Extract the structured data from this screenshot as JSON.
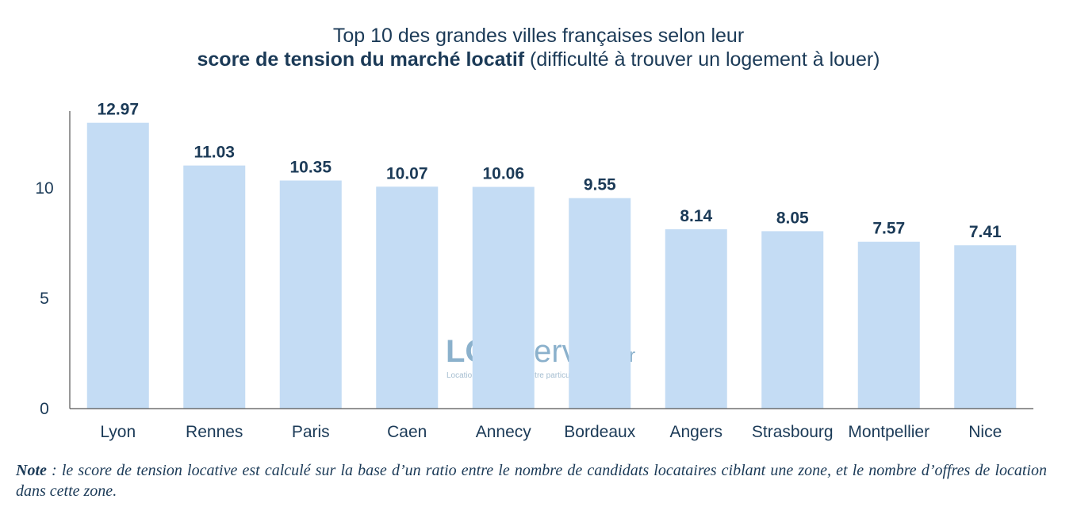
{
  "title": {
    "line1": "Top 10 des grandes villes françaises selon leur",
    "line2_bold": "score de tension du marché locatif",
    "line2_rest": " (difficulté à trouver un logement à louer)"
  },
  "chart_data": {
    "type": "bar",
    "categories": [
      "Lyon",
      "Rennes",
      "Paris",
      "Caen",
      "Annecy",
      "Bordeaux",
      "Angers",
      "Strasbourg",
      "Montpellier",
      "Nice"
    ],
    "values": [
      12.97,
      11.03,
      10.35,
      10.07,
      10.06,
      9.55,
      8.14,
      8.05,
      7.57,
      7.41
    ],
    "value_labels": [
      "12.97",
      "11.03",
      "10.35",
      "10.07",
      "10.06",
      "9.55",
      "8.14",
      "8.05",
      "7.57",
      "7.41"
    ],
    "yticks": [
      "0",
      "5",
      "10"
    ],
    "ytick_values": [
      0,
      5,
      10
    ],
    "ylim": [
      0,
      13.5
    ],
    "xlabel": "",
    "ylabel": "",
    "bar_color": "#c4dcf4",
    "text_color": "#1b3a57"
  },
  "watermark": {
    "brand_bold": "LOC",
    "brand_light": "Service",
    "brand_tld": ".fr",
    "tagline": "Location & Colocation entre particuliers"
  },
  "note": {
    "label": "Note",
    "text": " : le score de tension locative est calculé sur la base d’un ratio entre le nombre de candidats locataires ciblant une zone, et le nombre d’offres de location dans cette zone."
  }
}
